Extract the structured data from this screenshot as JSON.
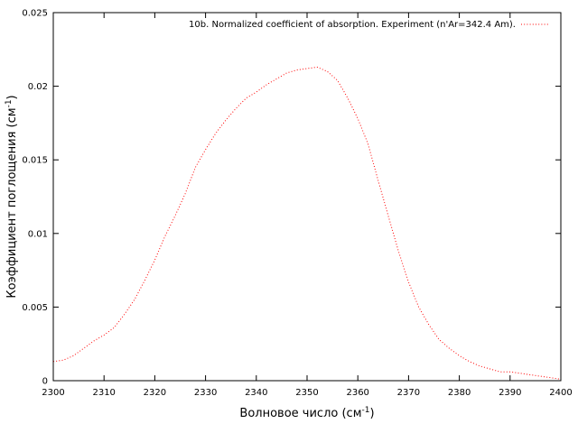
{
  "chart_data": {
    "type": "line",
    "title": "",
    "xlabel": "Волновое число (см",
    "xlabel_sup": "-1",
    "xlabel_suffix": ")",
    "ylabel": "Коэффициент поглощения (см",
    "ylabel_sup": "-1",
    "ylabel_suffix": ")",
    "xlim": [
      2300,
      2400
    ],
    "ylim": [
      0,
      0.025
    ],
    "x_ticks": [
      2300,
      2310,
      2320,
      2330,
      2340,
      2350,
      2360,
      2370,
      2380,
      2390,
      2400
    ],
    "y_ticks": [
      0,
      0.005,
      0.01,
      0.015,
      0.02,
      0.025
    ],
    "y_tick_labels": [
      "0",
      "0.005",
      "0.01",
      "0.015",
      "0.02",
      "0.025"
    ],
    "grid": false,
    "legend_position": "top-right",
    "line_style": "dotted",
    "series": [
      {
        "name": "10b. Normalized coefficient of absorption. Experiment (n'Ar=342.4 Am).",
        "color": "#ff0000",
        "x": [
          2300,
          2302,
          2304,
          2306,
          2308,
          2310,
          2312,
          2314,
          2316,
          2318,
          2320,
          2322,
          2324,
          2326,
          2328,
          2330,
          2332,
          2334,
          2336,
          2338,
          2340,
          2342,
          2344,
          2346,
          2348,
          2350,
          2352,
          2354,
          2356,
          2358,
          2360,
          2362,
          2364,
          2366,
          2368,
          2370,
          2372,
          2374,
          2376,
          2378,
          2380,
          2382,
          2384,
          2386,
          2388,
          2390,
          2392,
          2394,
          2396,
          2398,
          2400
        ],
        "y": [
          0.0013,
          0.0014,
          0.0017,
          0.0022,
          0.0027,
          0.0031,
          0.0036,
          0.0045,
          0.0055,
          0.0068,
          0.0082,
          0.0098,
          0.0112,
          0.0127,
          0.0145,
          0.0157,
          0.0168,
          0.0177,
          0.0185,
          0.0192,
          0.0196,
          0.0201,
          0.0205,
          0.0209,
          0.0211,
          0.0212,
          0.0213,
          0.021,
          0.0204,
          0.0192,
          0.0178,
          0.0161,
          0.0136,
          0.0112,
          0.0088,
          0.0067,
          0.005,
          0.0038,
          0.0028,
          0.0022,
          0.0017,
          0.0013,
          0.001,
          0.0008,
          0.0006,
          0.0006,
          0.0005,
          0.0004,
          0.0003,
          0.0002,
          0.0001
        ]
      }
    ]
  }
}
